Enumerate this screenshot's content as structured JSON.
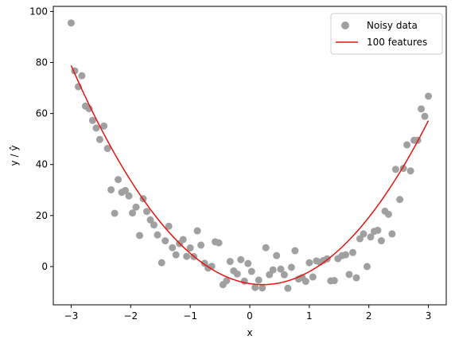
{
  "chart_data": {
    "type": "scatter",
    "title": "",
    "xlabel": "x",
    "ylabel": "y / ŷ",
    "xlim": [
      -3.3,
      3.3
    ],
    "ylim": [
      -15,
      102
    ],
    "xticks": [
      -3,
      -2,
      -1,
      0,
      1,
      2,
      3
    ],
    "yticks": [
      0,
      20,
      40,
      60,
      80,
      100
    ],
    "xtick_labels": [
      "−3",
      "−2",
      "−1",
      "0",
      "1",
      "2",
      "3"
    ],
    "ytick_labels": [
      "0",
      "20",
      "40",
      "60",
      "80",
      "100"
    ],
    "grid": false,
    "legend": {
      "placement": "top-right"
    },
    "series": [
      {
        "name": "Noisy data",
        "type": "scatter",
        "color": "#a0a0a0",
        "points": [
          [
            -3.0,
            95.5
          ],
          [
            -2.94,
            76.7
          ],
          [
            -2.88,
            70.5
          ],
          [
            -2.82,
            74.8
          ],
          [
            -2.76,
            62.9
          ],
          [
            -2.7,
            61.9
          ],
          [
            -2.64,
            57.3
          ],
          [
            -2.58,
            54.3
          ],
          [
            -2.52,
            49.8
          ],
          [
            -2.45,
            55.1
          ],
          [
            -2.39,
            46.3
          ],
          [
            -2.33,
            30.1
          ],
          [
            -2.27,
            20.9
          ],
          [
            -2.21,
            34.1
          ],
          [
            -2.15,
            29.1
          ],
          [
            -2.09,
            29.8
          ],
          [
            -2.03,
            27.7
          ],
          [
            -1.97,
            21.0
          ],
          [
            -1.91,
            23.3
          ],
          [
            -1.85,
            12.2
          ],
          [
            -1.79,
            26.6
          ],
          [
            -1.73,
            21.6
          ],
          [
            -1.67,
            18.3
          ],
          [
            -1.61,
            16.3
          ],
          [
            -1.55,
            12.4
          ],
          [
            -1.48,
            1.5
          ],
          [
            -1.42,
            10.1
          ],
          [
            -1.36,
            15.8
          ],
          [
            -1.3,
            7.4
          ],
          [
            -1.24,
            4.6
          ],
          [
            -1.18,
            9.0
          ],
          [
            -1.12,
            10.6
          ],
          [
            -1.06,
            4.0
          ],
          [
            -1.0,
            7.3
          ],
          [
            -0.94,
            3.9
          ],
          [
            -0.88,
            14.0
          ],
          [
            -0.82,
            8.4
          ],
          [
            -0.76,
            1.3
          ],
          [
            -0.7,
            -0.6
          ],
          [
            -0.64,
            0.1
          ],
          [
            -0.58,
            9.7
          ],
          [
            -0.52,
            9.3
          ],
          [
            -0.45,
            -7.1
          ],
          [
            -0.39,
            -5.6
          ],
          [
            -0.33,
            2.0
          ],
          [
            -0.27,
            -1.7
          ],
          [
            -0.21,
            -2.9
          ],
          [
            -0.15,
            2.7
          ],
          [
            -0.09,
            -5.7
          ],
          [
            -0.03,
            1.2
          ],
          [
            0.03,
            -1.9
          ],
          [
            0.09,
            -8.2
          ],
          [
            0.15,
            -5.3
          ],
          [
            0.21,
            -8.4
          ],
          [
            0.27,
            7.4
          ],
          [
            0.33,
            -3.2
          ],
          [
            0.39,
            -1.3
          ],
          [
            0.45,
            4.3
          ],
          [
            0.52,
            -1.0
          ],
          [
            0.58,
            -3.2
          ],
          [
            0.64,
            -8.5
          ],
          [
            0.7,
            -0.3
          ],
          [
            0.76,
            6.2
          ],
          [
            0.82,
            -4.9
          ],
          [
            0.88,
            -4.3
          ],
          [
            0.94,
            -5.8
          ],
          [
            1.0,
            1.5
          ],
          [
            1.06,
            -4.1
          ],
          [
            1.12,
            2.2
          ],
          [
            1.18,
            1.7
          ],
          [
            1.24,
            2.4
          ],
          [
            1.3,
            3.0
          ],
          [
            1.36,
            -5.6
          ],
          [
            1.42,
            -5.5
          ],
          [
            1.48,
            3.1
          ],
          [
            1.55,
            4.3
          ],
          [
            1.61,
            4.6
          ],
          [
            1.67,
            -3.1
          ],
          [
            1.73,
            5.5
          ],
          [
            1.79,
            -4.4
          ],
          [
            1.85,
            10.9
          ],
          [
            1.91,
            12.8
          ],
          [
            1.97,
            0.0
          ],
          [
            2.03,
            11.6
          ],
          [
            2.09,
            13.8
          ],
          [
            2.15,
            14.2
          ],
          [
            2.21,
            10.1
          ],
          [
            2.27,
            21.7
          ],
          [
            2.33,
            20.5
          ],
          [
            2.39,
            12.8
          ],
          [
            2.45,
            38.1
          ],
          [
            2.52,
            26.3
          ],
          [
            2.58,
            38.5
          ],
          [
            2.64,
            47.7
          ],
          [
            2.7,
            37.5
          ],
          [
            2.76,
            49.5
          ],
          [
            2.82,
            49.5
          ],
          [
            2.88,
            61.8
          ],
          [
            2.94,
            58.9
          ],
          [
            3.0,
            66.8
          ]
        ]
      },
      {
        "name": "100 features",
        "type": "line",
        "color": "#e8130f",
        "coefficients": [
          -6.7,
          -3.6,
          8.3
        ]
      }
    ]
  }
}
